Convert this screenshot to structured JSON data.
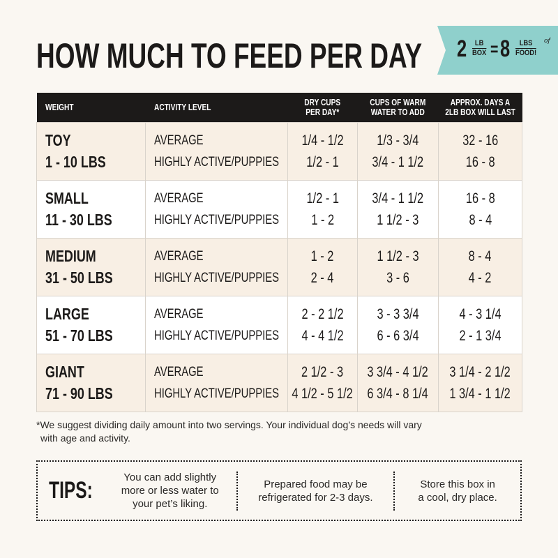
{
  "title": "HOW MUCH TO FEED PER DAY",
  "banner": {
    "color": "#8fd0cc",
    "num1": "2",
    "unit1_top": "LB",
    "unit1_bottom": "BOX",
    "equals": "=",
    "num2": "8",
    "unit2_top": "LBS",
    "unit2_of": "of",
    "unit2_bottom": "FOOD!"
  },
  "table": {
    "headers": [
      "WEIGHT",
      "ACTIVITY LEVEL",
      "DRY CUPS PER DAY*",
      "CUPS OF WARM WATER TO ADD",
      "APPROX. DAYS A 2LB BOX WILL LAST"
    ],
    "header_lines": [
      [
        "WEIGHT"
      ],
      [
        "ACTIVITY LEVEL"
      ],
      [
        "DRY CUPS",
        "PER DAY*"
      ],
      [
        "CUPS OF WARM",
        "WATER TO ADD"
      ],
      [
        "APPROX. DAYS A",
        "2LB BOX WILL LAST"
      ]
    ],
    "rows": [
      {
        "size": "TOY",
        "weight": "1 - 10 LBS",
        "levels": [
          "AVERAGE",
          "HIGHLY ACTIVE/PUPPIES"
        ],
        "dry": [
          "1/4 - 1/2",
          "1/2 - 1"
        ],
        "water": [
          "1/3 - 3/4",
          "3/4 - 1 1/2"
        ],
        "days": [
          "32 - 16",
          "16 - 8"
        ]
      },
      {
        "size": "SMALL",
        "weight": "11 - 30 LBS",
        "levels": [
          "AVERAGE",
          "HIGHLY ACTIVE/PUPPIES"
        ],
        "dry": [
          "1/2 - 1",
          "1 - 2"
        ],
        "water": [
          "3/4 - 1 1/2",
          "1 1/2 - 3"
        ],
        "days": [
          "16 - 8",
          "8 - 4"
        ]
      },
      {
        "size": "MEDIUM",
        "weight": "31 - 50 LBS",
        "levels": [
          "AVERAGE",
          "HIGHLY ACTIVE/PUPPIES"
        ],
        "dry": [
          "1 - 2",
          "2 - 4"
        ],
        "water": [
          "1 1/2 - 3",
          "3 - 6"
        ],
        "days": [
          "8 - 4",
          "4 - 2"
        ]
      },
      {
        "size": "LARGE",
        "weight": "51 - 70 LBS",
        "levels": [
          "AVERAGE",
          "HIGHLY ACTIVE/PUPPIES"
        ],
        "dry": [
          "2 - 2 1/2",
          "4 - 4 1/2"
        ],
        "water": [
          "3 - 3 3/4",
          "6 - 6 3/4"
        ],
        "days": [
          "4 - 3 1/4",
          "2 - 1 3/4"
        ]
      },
      {
        "size": "GIANT",
        "weight": "71 - 90 LBS",
        "levels": [
          "AVERAGE",
          "HIGHLY ACTIVE/PUPPIES"
        ],
        "dry": [
          "2 1/2 - 3",
          "4 1/2 - 5 1/2"
        ],
        "water": [
          "3 3/4 - 4 1/2",
          "6 3/4 - 8 1/4"
        ],
        "days": [
          "3 1/4 - 2 1/2",
          "1 3/4 - 1 1/2"
        ]
      }
    ]
  },
  "note": [
    "*We suggest dividing daily amount into two servings. Your individual dog’s needs will vary",
    "with age and activity."
  ],
  "tips": {
    "label": "TIPS:",
    "items": [
      [
        "You can add slightly",
        "more or less water to",
        "your pet’s liking."
      ],
      [
        "Prepared food may be",
        "refrigerated for 2-3 days."
      ],
      [
        "Store this box in",
        "a cool, dry place."
      ]
    ]
  }
}
